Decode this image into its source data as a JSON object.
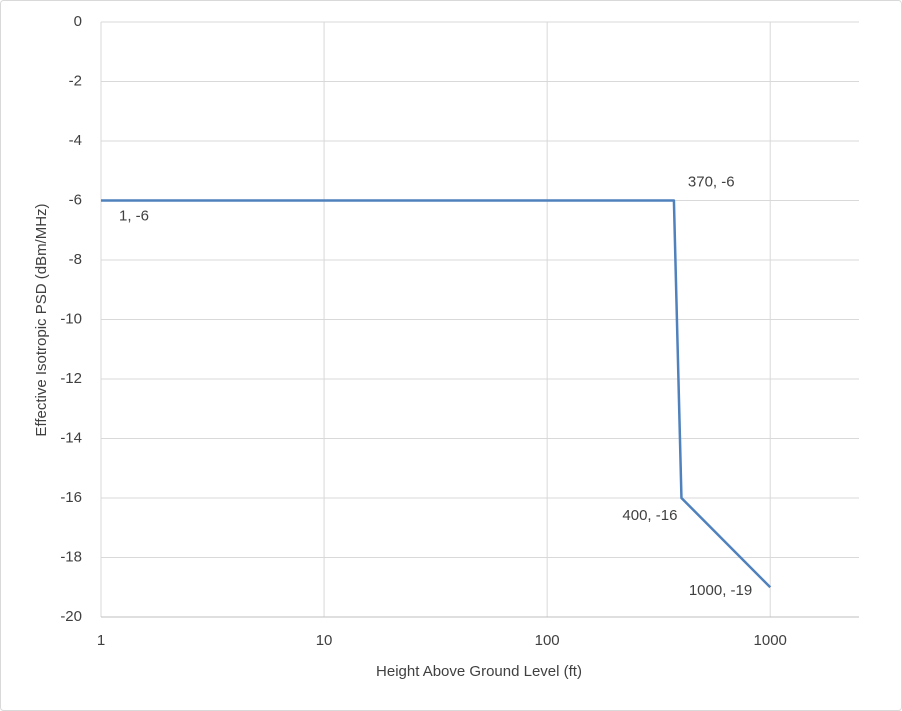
{
  "chart_data": {
    "type": "line",
    "x_label": "Height Above Ground Level (ft)",
    "y_label": "Effective Isotropic PSD (dBm/MHz)",
    "x": [
      1,
      370,
      400,
      1000
    ],
    "series": [
      {
        "color": "#4f81bd",
        "values": [
          -6,
          -6,
          -16,
          -19
        ],
        "value_labels": [
          "1, -6",
          "370, -6",
          "400, -16",
          "1000, -19"
        ]
      }
    ],
    "xlim": [
      1,
      2500
    ],
    "xticks": [
      1,
      10,
      100,
      1000
    ],
    "xscale": "log",
    "ylim": [
      -20,
      0
    ],
    "yticks": [
      0,
      -2,
      -4,
      -6,
      -8,
      -10,
      -12,
      -14,
      -16,
      -18,
      -20
    ],
    "grid": true
  }
}
